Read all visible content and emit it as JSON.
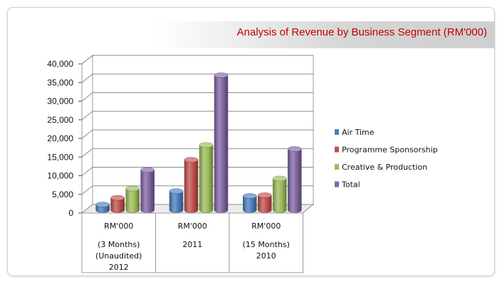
{
  "panel": {
    "title": "Analysis of Revenue by Business Segment (RM'000)"
  },
  "chart_data": {
    "type": "bar",
    "title": "Analysis of Revenue by Business Segment (RM'000)",
    "categories": [
      [
        "RM'000",
        "(3 Months)",
        "(Unaudited)",
        "2012"
      ],
      [
        "RM'000",
        "2011"
      ],
      [
        "RM'000",
        "(15 Months)",
        "2010"
      ]
    ],
    "series": [
      {
        "name": "Air Time",
        "color": "#4a7ebb",
        "values": [
          1500,
          5100,
          3800
        ]
      },
      {
        "name": "Programme Sponsorship",
        "color": "#c0504d",
        "values": [
          3300,
          13500,
          4000
        ]
      },
      {
        "name": "Creative & Production",
        "color": "#9bbb59",
        "values": [
          5800,
          17500,
          8500
        ]
      },
      {
        "name": "Total",
        "color": "#8064a2",
        "values": [
          10800,
          36200,
          16400
        ]
      }
    ],
    "ylim": [
      0,
      40000
    ],
    "yticks": [
      "0",
      "5,000",
      "10,000",
      "15,000",
      "20,000",
      "25,000",
      "30,000",
      "35,000",
      "40,000"
    ],
    "legend_position": "right",
    "grid": true,
    "style": "3d-cylinder"
  }
}
